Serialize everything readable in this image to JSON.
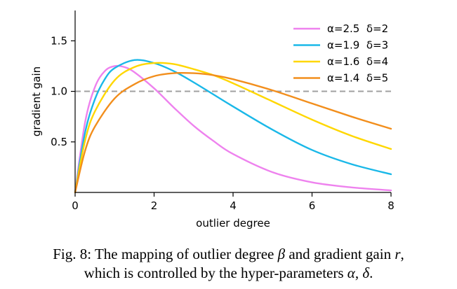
{
  "chart_data": {
    "type": "line",
    "title": "",
    "xlabel": "outlier degree",
    "ylabel": "gradient gain",
    "xlim": [
      0,
      8
    ],
    "ylim": [
      0,
      1.8
    ],
    "xticks": [
      0,
      2,
      4,
      6,
      8
    ],
    "yticks": [
      0.5,
      1.0,
      1.5
    ],
    "xtick_labels": [
      "0",
      "2",
      "4",
      "6",
      "8"
    ],
    "ytick_labels": [
      "0.5",
      "1.0",
      "1.5"
    ],
    "reference_line": {
      "y": 1.0,
      "style": "dashed",
      "color": "#a0a0a0"
    },
    "legend_position": "top-right",
    "series": [
      {
        "name": "α=2.5  δ=2",
        "alpha": 2.5,
        "delta": 2,
        "color": "#ee82ee",
        "x": [
          0,
          0.25,
          0.5,
          0.75,
          1,
          1.25,
          1.5,
          2,
          2.5,
          3,
          3.5,
          4,
          5,
          6,
          7,
          8
        ],
        "y": [
          0,
          0.69,
          1.04,
          1.2,
          1.25,
          1.24,
          1.19,
          1.03,
          0.84,
          0.66,
          0.51,
          0.38,
          0.2,
          0.1,
          0.05,
          0.02
        ]
      },
      {
        "name": "α=1.9  δ=3",
        "alpha": 1.9,
        "delta": 3,
        "color": "#1ab8e8",
        "x": [
          0,
          0.25,
          0.5,
          0.75,
          1,
          1.5,
          2,
          2.5,
          3,
          3.5,
          4,
          5,
          6,
          7,
          8
        ],
        "y": [
          0,
          0.59,
          0.92,
          1.12,
          1.23,
          1.31,
          1.28,
          1.2,
          1.09,
          0.97,
          0.85,
          0.62,
          0.42,
          0.28,
          0.18
        ]
      },
      {
        "name": "α=1.6  δ=4",
        "alpha": 1.6,
        "delta": 4,
        "color": "#ffd700",
        "x": [
          0,
          0.25,
          0.5,
          1,
          1.5,
          2,
          2.5,
          3,
          3.5,
          4,
          5,
          6,
          7,
          8
        ],
        "y": [
          0,
          0.51,
          0.8,
          1.11,
          1.24,
          1.28,
          1.27,
          1.22,
          1.16,
          1.08,
          0.9,
          0.72,
          0.56,
          0.43
        ]
      },
      {
        "name": "α=1.4  δ=5",
        "alpha": 1.4,
        "delta": 5,
        "color": "#f28e1c",
        "x": [
          0,
          0.25,
          0.5,
          1,
          1.5,
          2,
          2.5,
          3,
          3.5,
          4,
          5,
          6,
          7,
          8
        ],
        "y": [
          0,
          0.41,
          0.65,
          0.93,
          1.07,
          1.15,
          1.18,
          1.18,
          1.16,
          1.12,
          1.01,
          0.88,
          0.75,
          0.63
        ]
      }
    ]
  },
  "caption": {
    "line1_pre": "Fig. 8: The mapping of outlier degree ",
    "beta": "β",
    "line1_mid": " and gradient gain ",
    "r": "r",
    "line1_post": ",",
    "line2_pre": "which is controlled by the hyper-parameters ",
    "alpha": "α",
    "comma": ", ",
    "delta": "δ",
    "line2_post": "."
  }
}
